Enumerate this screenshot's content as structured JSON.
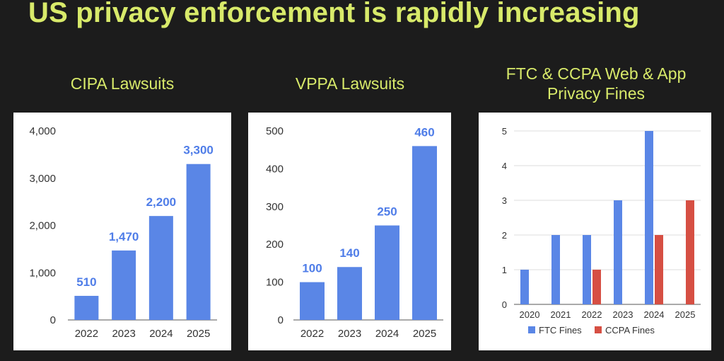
{
  "slide": {
    "title": "US privacy enforcement is rapidly increasing"
  },
  "colors": {
    "background": "#1c1c1c",
    "title": "#d8ea6a",
    "bar_blue": "#5a86e6",
    "bar_red": "#d64f43",
    "label_blue": "#4f7de8"
  },
  "chart_data": [
    {
      "type": "bar",
      "title": "CIPA Lawsuits",
      "categories": [
        "2022",
        "2023",
        "2024",
        "2025"
      ],
      "values": [
        510,
        1470,
        2200,
        3300
      ],
      "data_labels": [
        "510",
        "1,470",
        "2,200",
        "3,300"
      ],
      "yticks": [
        "0",
        "1,000",
        "2,000",
        "3,000",
        "4,000"
      ],
      "ylim": [
        0,
        4000
      ],
      "grid": false
    },
    {
      "type": "bar",
      "title": "VPPA Lawsuits",
      "categories": [
        "2022",
        "2023",
        "2024",
        "2025"
      ],
      "values": [
        100,
        140,
        250,
        460
      ],
      "data_labels": [
        "100",
        "140",
        "250",
        "460"
      ],
      "yticks": [
        "0",
        "100",
        "200",
        "300",
        "400",
        "500"
      ],
      "ylim": [
        0,
        500
      ],
      "grid": false
    },
    {
      "type": "bar",
      "title_lines": [
        "FTC & CCPA Web & App",
        "Privacy Fines"
      ],
      "categories": [
        "2020",
        "2021",
        "2022",
        "2023",
        "2024",
        "2025"
      ],
      "series": [
        {
          "name": "FTC Fines",
          "values": [
            1,
            2,
            2,
            3,
            5,
            0
          ],
          "color": "#5a86e6"
        },
        {
          "name": "CCPA Fines",
          "values": [
            0,
            0,
            1,
            0,
            2,
            3
          ],
          "color": "#d64f43"
        }
      ],
      "yticks": [
        "0",
        "1",
        "2",
        "3",
        "4",
        "5"
      ],
      "ylim": [
        0,
        5
      ],
      "grid": true,
      "legend": "bottom"
    }
  ]
}
